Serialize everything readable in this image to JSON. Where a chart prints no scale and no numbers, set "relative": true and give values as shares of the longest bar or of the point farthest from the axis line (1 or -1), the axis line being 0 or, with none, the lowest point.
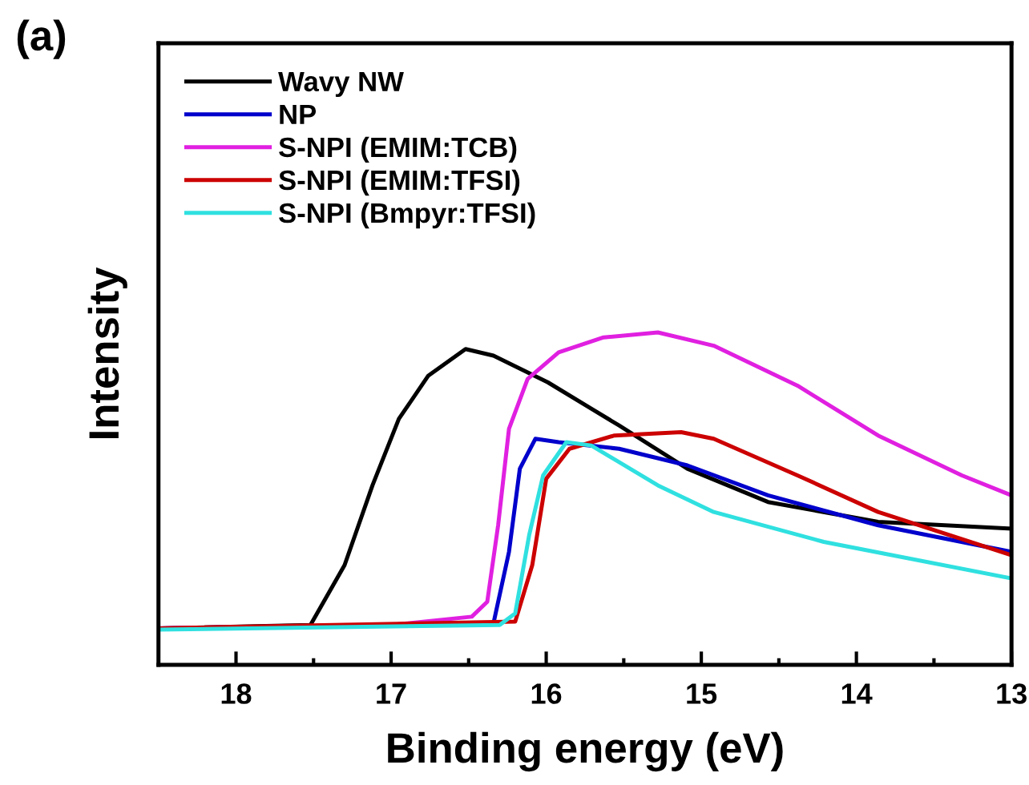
{
  "chart_data": {
    "type": "line",
    "relative": true,
    "xlabel": "Binding energy (eV)",
    "ylabel": "Intensity",
    "annotations": [
      "(a)"
    ],
    "xlim": [
      18.5,
      13
    ],
    "xticks": [
      18,
      {
        "value": 17.5,
        "label": null
      },
      17,
      {
        "value": 16.5,
        "label": null
      },
      16,
      {
        "value": 15.5,
        "label": null
      },
      15,
      {
        "value": 14.5,
        "label": null
      },
      14,
      {
        "value": 13.5,
        "label": null
      },
      13
    ],
    "legend": "top left",
    "grid": false,
    "line_style": "solid",
    "marker": "none",
    "series": [
      {
        "name": "Wavy NW",
        "color": "#000000",
        "x": [
          18.5,
          17.52,
          17.3,
          17.12,
          16.95,
          16.76,
          16.52,
          16.34,
          15.99,
          15.53,
          15.09,
          14.57,
          13.86,
          13.0
        ],
        "values": [
          0.11,
          0.12,
          0.3,
          0.54,
          0.74,
          0.87,
          0.95,
          0.93,
          0.85,
          0.72,
          0.59,
          0.49,
          0.43,
          0.41
        ]
      },
      {
        "name": "NP",
        "color": "#0000cc",
        "x": [
          18.5,
          16.34,
          16.24,
          16.17,
          16.07,
          15.92,
          15.53,
          15.09,
          14.57,
          13.86,
          13.0
        ],
        "values": [
          0.11,
          0.125,
          0.34,
          0.59,
          0.68,
          0.67,
          0.65,
          0.6,
          0.51,
          0.42,
          0.34
        ]
      },
      {
        "name": "S-NPI (EMIM:TCB)",
        "color": "#e020e0",
        "x": [
          18.5,
          17.0,
          16.48,
          16.38,
          16.31,
          16.24,
          16.12,
          15.92,
          15.63,
          15.28,
          14.92,
          14.38,
          13.86,
          13.32,
          13.0
        ],
        "values": [
          0.11,
          0.12,
          0.145,
          0.19,
          0.42,
          0.71,
          0.86,
          0.94,
          0.985,
          1.0,
          0.96,
          0.84,
          0.69,
          0.57,
          0.51
        ]
      },
      {
        "name": "S-NPI (EMIM:TFSI)",
        "color": "#cc0000",
        "x": [
          18.5,
          16.2,
          16.09,
          16.0,
          15.85,
          15.56,
          15.13,
          14.92,
          14.38,
          13.86,
          13.0
        ],
        "values": [
          0.11,
          0.13,
          0.3,
          0.56,
          0.65,
          0.69,
          0.7,
          0.68,
          0.57,
          0.46,
          0.33
        ]
      },
      {
        "name": "S-NPI (Bmpyr:TFSI)",
        "color": "#30e0e0",
        "x": [
          18.5,
          16.3,
          16.2,
          16.11,
          16.02,
          15.87,
          15.71,
          15.28,
          14.92,
          14.21,
          13.0
        ],
        "values": [
          0.106,
          0.12,
          0.155,
          0.39,
          0.57,
          0.67,
          0.66,
          0.54,
          0.46,
          0.37,
          0.26
        ]
      }
    ]
  }
}
